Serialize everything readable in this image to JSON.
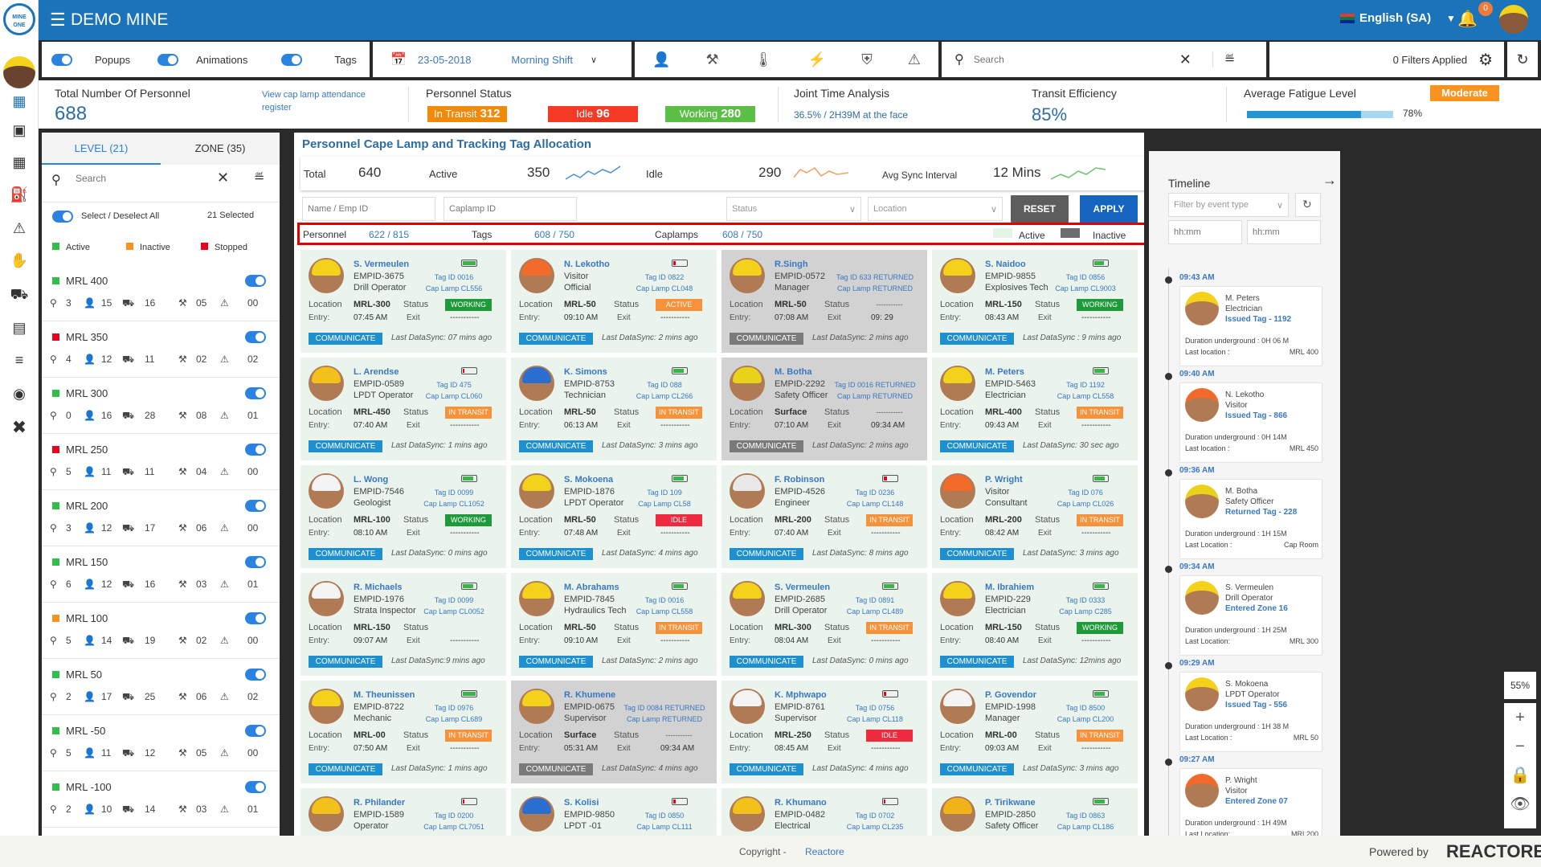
{
  "app": {
    "title": "DEMO MINE",
    "logo_text": "MINE ONE",
    "language": "English (SA)",
    "notifications": "0"
  },
  "toolbar": {
    "popups": "Popups",
    "animations": "Animations",
    "tags": "Tags",
    "date": "23-05-2018",
    "shift": "Morning Shift",
    "search_placeholder": "Search",
    "filters_applied": "0 Filters Applied"
  },
  "stats": {
    "total_label": "Total Number Of Personnel",
    "total_value": "688",
    "cap_link": "View cap lamp attendance register",
    "status_label": "Personnel Status",
    "in_transit_label": "In Transit",
    "in_transit": "312",
    "idle_label": "Idle",
    "idle": "96",
    "working_label": "Working",
    "working": "280",
    "joint_label": "Joint Time Analysis",
    "joint_value": "36.5% / 2H39M at the face",
    "transit_label": "Transit Efficiency",
    "transit_value": "85%",
    "fatigue_label": "Average Fatigue Level",
    "fatigue_badge": "Moderate",
    "fatigue_value": "78%",
    "fatigue_fraction": 0.78
  },
  "left": {
    "tab_level": "LEVEL (21)",
    "tab_zone": "ZONE (35)",
    "search_placeholder": "Search",
    "select_all": "Select / Deselect All",
    "selected": "21  Selected",
    "legend": {
      "active": "Active",
      "inactive": "Inactive",
      "stopped": "Stopped"
    },
    "levels": [
      {
        "name": "MRL 400",
        "state": "active",
        "pins": "3",
        "people": "15",
        "vehicles": "16",
        "tools": "05",
        "alerts": "00"
      },
      {
        "name": "MRL 350",
        "state": "stopped",
        "pins": "4",
        "people": "12",
        "vehicles": "11",
        "tools": "02",
        "alerts": "02"
      },
      {
        "name": "MRL 300",
        "state": "active",
        "pins": "0",
        "people": "16",
        "vehicles": "28",
        "tools": "08",
        "alerts": "01"
      },
      {
        "name": "MRL 250",
        "state": "stopped",
        "pins": "5",
        "people": "11",
        "vehicles": "11",
        "tools": "04",
        "alerts": "00"
      },
      {
        "name": "MRL 200",
        "state": "active",
        "pins": "3",
        "people": "12",
        "vehicles": "17",
        "tools": "06",
        "alerts": "00"
      },
      {
        "name": "MRL 150",
        "state": "active",
        "pins": "6",
        "people": "12",
        "vehicles": "16",
        "tools": "03",
        "alerts": "01"
      },
      {
        "name": "MRL 100",
        "state": "inactive",
        "pins": "5",
        "people": "14",
        "vehicles": "19",
        "tools": "02",
        "alerts": "00"
      },
      {
        "name": "MRL 50",
        "state": "active",
        "pins": "2",
        "people": "17",
        "vehicles": "25",
        "tools": "06",
        "alerts": "02"
      },
      {
        "name": "MRL -50",
        "state": "active",
        "pins": "5",
        "people": "11",
        "vehicles": "12",
        "tools": "05",
        "alerts": "00"
      },
      {
        "name": "MRL -100",
        "state": "active",
        "pins": "2",
        "people": "10",
        "vehicles": "14",
        "tools": "03",
        "alerts": "01"
      }
    ]
  },
  "colors": {
    "active": "#2fbf4a",
    "inactive": "#f7931e",
    "stopped": "#e8001c",
    "working": "#1e9a3a",
    "in_transit": "#f7923a",
    "idle": "#ee2a3f",
    "accent": "#1b74b9"
  },
  "main": {
    "title": "Personnel Cape Lamp and Tracking Tag Allocation",
    "summary": {
      "total_label": "Total",
      "total": "640",
      "active_label": "Active",
      "active": "350",
      "idle_label": "Idle",
      "idle": "290",
      "sync_label": "Avg Sync Interval",
      "sync": "12 Mins"
    },
    "filters": {
      "name_placeholder": "Name / Emp ID",
      "caplamp_placeholder": "Caplamp ID",
      "status": "Status",
      "location": "Location",
      "reset": "RESET",
      "apply": "APPLY"
    },
    "counts": {
      "personnel_label": "Personnel",
      "personnel": "622  / 815",
      "tags_label": "Tags",
      "tags": "608  / 750",
      "caplamps_label": "Caplamps",
      "caplamps": "608  / 750",
      "active": "Active",
      "inactive": "Inactive"
    },
    "labels": {
      "location": "Location",
      "status": "Status",
      "entry": "Entry:",
      "exit": "Exit",
      "communicate": "COMMUNICATE"
    },
    "cards": [
      {
        "name": "S. Vermeulen",
        "emp": "EMPID-3675",
        "role": "Drill Operator",
        "tag": "Tag ID 0016",
        "lamp": "Cap Lamp CL556",
        "loc": "MRL-300",
        "status": "WORKING",
        "entry": "07:45 AM",
        "exit": "-----------",
        "sync": "Last DataSync: 07 mins ago",
        "battery": 1,
        "helmet": "#f2d21a"
      },
      {
        "name": "N. Lekotho",
        "emp": "Visitor",
        "role": "Official",
        "tag": "Tag ID 0822",
        "lamp": "Cap Lamp CL048",
        "loc": "MRL-50",
        "status": "ACTIVE",
        "entry": "09:10 AM",
        "exit": "-----------",
        "sync": "Last DataSync: 2 mins ago",
        "battery": 0.2,
        "helmet": "#f26b2a"
      },
      {
        "name": "R.Singh",
        "emp": "EMPID-0572",
        "role": "Manager",
        "tag": "Tag ID 633 RETURNED",
        "lamp": "Cap Lamp RETURNED",
        "loc": "MRL-50",
        "status": "-----------",
        "entry": "07:08 AM",
        "exit": "09: 29",
        "sync": "Last DataSync: 2 mins ago",
        "returned": true,
        "helmet": "#f2d21a"
      },
      {
        "name": "S. Naidoo",
        "emp": "EMPID-9855",
        "role": "Explosives Tech",
        "tag": "Tag ID 0856",
        "lamp": "Cap Lamp CL9003",
        "loc": "MRL-150",
        "status": "WORKING",
        "entry": "08:43 AM",
        "exit": "-----------",
        "sync": "Last DataSync : 9 mins ago",
        "battery": 0.75,
        "helmet": "#f2d21a"
      },
      {
        "name": "L. Arendse",
        "emp": "EMPID-0589",
        "role": "LPDT Operator",
        "tag": "Tag ID 475",
        "lamp": "Cap Lamp CL060",
        "loc": "MRL-450",
        "status": "IN TRANSIT",
        "entry": "07:40 AM",
        "exit": "-----------",
        "sync": "Last DataSync: 1 mins ago",
        "battery": 0.15,
        "helmet": "#f2c21a"
      },
      {
        "name": "K. Simons",
        "emp": "EMPID-8753",
        "role": "Technician",
        "tag": "Tag ID 088",
        "lamp": "Cap Lamp CL266",
        "loc": "MRL-50",
        "status": "IN TRANSIT",
        "entry": "06:13 AM",
        "exit": "-----------",
        "sync": "Last DataSync: 3 mins ago",
        "battery": 0.8,
        "helmet": "#2a6fd0"
      },
      {
        "name": "M. Botha",
        "emp": "EMPID-2292",
        "role": "Safety Officer",
        "tag": "Tag ID 0016 RETURNED",
        "lamp": "Cap Lamp RETURNED",
        "loc": "Surface",
        "status": "-----------",
        "entry": "07:10 AM",
        "exit": "09:34 AM",
        "sync": "Last DataSync: 2 mins ago",
        "returned": true,
        "helmet": "#e8d21a"
      },
      {
        "name": "M. Peters",
        "emp": "EMPID-5463",
        "role": "Electrician",
        "tag": "Tag ID 1192",
        "lamp": "Cap Lamp CL558",
        "loc": "MRL-400",
        "status": "IN TRANSIT",
        "entry": "09:43  AM",
        "exit": "-----------",
        "sync": "Last DataSync: 30 sec ago",
        "battery": 0.8,
        "helmet": "#f2d21a"
      },
      {
        "name": "L. Wong",
        "emp": "EMPID-7546",
        "role": "Geologist",
        "tag": "Tag ID 0099",
        "lamp": "Cap Lamp CL1052",
        "loc": "MRL-100",
        "status": "WORKING",
        "entry": "08:10 AM",
        "exit": "-----------",
        "sync": "Last DataSync: 0 mins ago",
        "battery": 0.8,
        "helmet": "#f4f4f4"
      },
      {
        "name": "S. Mokoena",
        "emp": "EMPID-1876",
        "role": "LPDT Operator",
        "tag": "Tag ID 109",
        "lamp": "Cap Lamp CL58",
        "loc": "MRL-50",
        "status": "IDLE",
        "entry": "07:48 AM",
        "exit": "-----------",
        "sync": "Last DataSync: 4 mins ago",
        "battery": 0.8,
        "helmet": "#f2d21a"
      },
      {
        "name": "F. Robinson",
        "emp": "EMPID-4526",
        "role": "Engineer",
        "tag": "Tag ID 0236",
        "lamp": "Cap Lamp CL148",
        "loc": "MRL-200",
        "status": "IN TRANSIT",
        "entry": "07:40 AM",
        "exit": "-----------",
        "sync": "Last DataSync: 8 mins ago",
        "battery": 0.25,
        "helmet": "#e8e8e8"
      },
      {
        "name": "P. Wright",
        "emp": "Visitor",
        "role": "Consultant",
        "tag": "Tag ID 076",
        "lamp": "Cap Lamp CL026",
        "loc": "MRL-200",
        "status": "IN TRANSIT",
        "entry": "08:42 AM",
        "exit": "-----------",
        "sync": "Last DataSync: 3 mins ago",
        "battery": 0.8,
        "helmet": "#f26b2a"
      },
      {
        "name": "R. Michaels",
        "emp": "EMPID-1976",
        "role": "Strata Inspector",
        "tag": "Tag ID 0099",
        "lamp": "Cap Lamp CL0052",
        "loc": "MRL-150",
        "status": "",
        "entry": "09:07 AM",
        "exit": "-----------",
        "sync": "Last DataSync:9 mins ago",
        "battery": 0.8,
        "helmet": "#f4f4f4"
      },
      {
        "name": "M. Abrahams",
        "emp": "EMPID-7845",
        "role": "Hydraulics Tech",
        "tag": "Tag ID 0016",
        "lamp": "Cap Lamp CL558",
        "loc": "MRL-50",
        "status": "IN TRANSIT",
        "entry": "09:10 AM",
        "exit": "-----------",
        "sync": "Last DataSync: 2 mins ago",
        "battery": 0.8,
        "helmet": "#f2d21a"
      },
      {
        "name": "S. Vermeulen",
        "emp": "EMPID-2685",
        "role": "Drill Operator",
        "tag": "Tag ID 0891",
        "lamp": "Cap Lamp CL489",
        "loc": "MRL-300",
        "status": "IN TRANSIT",
        "entry": "08:04 AM",
        "exit": "-----------",
        "sync": "Last DataSync: 0  mins ago",
        "battery": 0.8,
        "helmet": "#f2d21a"
      },
      {
        "name": "M. Ibrahiem",
        "emp": "EMPID-229",
        "role": "Electrician",
        "tag": "Tag ID 0333",
        "lamp": "Cap Lamp C285",
        "loc": "MRL-150",
        "status": "WORKING",
        "entry": "08:40 AM",
        "exit": "-----------",
        "sync": "Last DataSync: 12mins ago",
        "battery": 0.8,
        "helmet": "#f2d21a"
      },
      {
        "name": "M. Theunissen",
        "emp": "EMPID-8722",
        "role": "Mechanic",
        "tag": "Tag ID 0976",
        "lamp": "Cap Lamp CL689",
        "loc": "MRL-00",
        "status": "IN TRANSIT",
        "entry": "07:50 AM",
        "exit": "-----------",
        "sync": "Last DataSync: 1 mins ago",
        "battery": 1,
        "helmet": "#f2d21a"
      },
      {
        "name": "R. Khumene",
        "emp": "EMPID-0675",
        "role": "Supervisor",
        "tag": "Tag ID 0084 RETURNED",
        "lamp": "Cap Lamp RETURNED",
        "loc": "Surface",
        "status": "-----------",
        "entry": "05:31 AM",
        "exit": "09:34 AM",
        "sync": "Last DataSync: 4 mins ago",
        "returned": true,
        "helmet": "#f2d21a"
      },
      {
        "name": "K. Mphwapo",
        "emp": "EMPID-8761",
        "role": "Supervisor",
        "tag": "Tag ID 0756",
        "lamp": "Cap Lamp CL118",
        "loc": "MRL-250",
        "status": "IDLE",
        "entry": "08:45 AM",
        "exit": "-----------",
        "sync": "Last DataSync: 4 mins ago",
        "battery": 0.2,
        "helmet": "#f4f4f4"
      },
      {
        "name": "P. Govendor",
        "emp": "EMPID-1998",
        "role": "Manager",
        "tag": "Tag ID 8500",
        "lamp": "Cap Lamp CL200",
        "loc": "MRL-00",
        "status": "IN TRANSIT",
        "entry": "09:03 AM",
        "exit": "-----------",
        "sync": "Last DataSync: 3  mins ago",
        "battery": 0.8,
        "helmet": "#f4f4f4"
      },
      {
        "name": "R. Philander",
        "emp": "EMPID-1589",
        "role": "Operator",
        "tag": "Tag ID 0200",
        "lamp": "Cap Lamp CL7051",
        "battery": 0.15,
        "helmet": "#f2c21a"
      },
      {
        "name": "S. Kolisi",
        "emp": "EMPID-9850",
        "role": "LPDT -01",
        "tag": "Tag ID 0850",
        "lamp": "Cap Lamp CL111",
        "battery": 0.2,
        "helmet": "#2a6fd0"
      },
      {
        "name": "R. Khumano",
        "emp": "EMPID-0482",
        "role": "Electrical",
        "tag": "Tag ID 0702",
        "lamp": "Cap Lamp CL235",
        "battery": 0.15,
        "helmet": "#f2c21a"
      },
      {
        "name": "P. Tirikwane",
        "emp": "EMPID-2850",
        "role": "Safety Officer",
        "tag": "Tag ID 0863",
        "lamp": "Cap Lamp CL186",
        "battery": 0.8,
        "helmet": "#f2b21a"
      }
    ]
  },
  "timeline": {
    "title": "Timeline",
    "filter_placeholder": "Filter by event type",
    "time_placeholder": "hh:mm",
    "dur_label": "Duration underground :",
    "items": [
      {
        "time": "09:43 AM",
        "name": "M. Peters",
        "role": "Electrician",
        "event": "Issued Tag - 1192",
        "duration": "0H 06 M",
        "loc_label": "Last  location :",
        "loc": "MRL 400",
        "helmet": "#f2d21a"
      },
      {
        "time": "09:40 AM",
        "name": "N. Lekotho",
        "role": "Visitor",
        "event": "Issued Tag - 866",
        "duration": "0H 14M",
        "loc_label": "Last  location :",
        "loc": "MRL 450",
        "helmet": "#f26b2a"
      },
      {
        "time": "09:36 AM",
        "name": "M. Botha",
        "role": "Safety Officer",
        "event": "Returned Tag - 228",
        "duration": "1H 15M",
        "loc_label": "Last Location :",
        "loc": "Cap Room",
        "helmet": "#e8d21a"
      },
      {
        "time": "09:34 AM",
        "name": "S. Vermeulen",
        "role": "Drill Operator",
        "event": "Entered Zone 16",
        "duration": "1H 25M",
        "loc_label": "Last Location:",
        "loc": "MRL 300",
        "helmet": "#f2d21a"
      },
      {
        "time": "09:29 AM",
        "name": "S. Mokoena",
        "role": "LPDT Operator",
        "event": "Issued Tag - 556",
        "duration": "1H 38 M",
        "loc_label": "Last Location :",
        "loc": "MRL 50",
        "helmet": "#f2d21a"
      },
      {
        "time": "09:27 AM",
        "name": "P. Wright",
        "role": "Visitor",
        "event": "Entered Zone 07",
        "duration": "1H 49M",
        "loc_label": "Last Location:",
        "loc": "MRL200",
        "helmet": "#f26b2a"
      }
    ]
  },
  "map_controls": {
    "zoom": "55%"
  },
  "footer": {
    "copyright": "Copyright -",
    "link": "Reactore",
    "powered": "Powered by",
    "brand": "REACTORE"
  }
}
